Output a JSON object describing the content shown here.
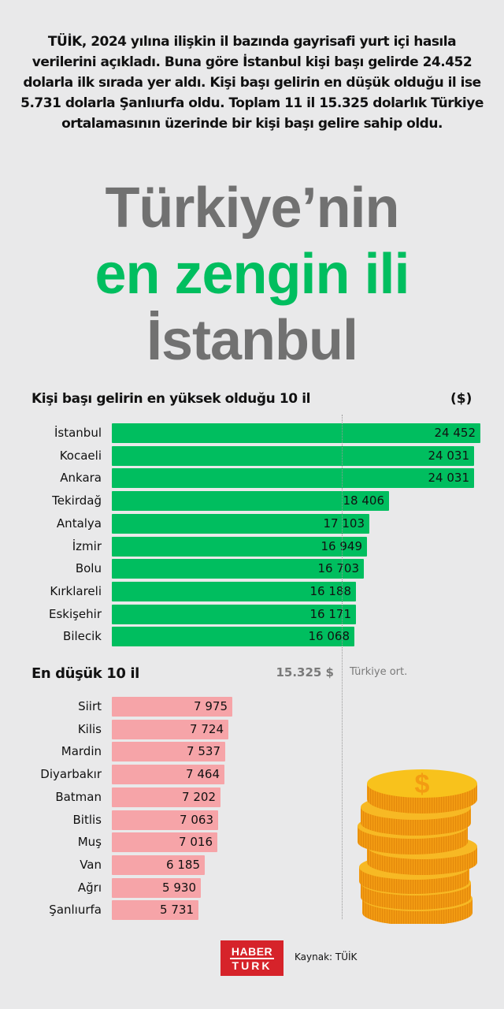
{
  "intro": "TÜİK, 2024 yılına ilişkin il bazında gayrisafi yurt içi hasıla verilerini açıkladı. Buna göre İstanbul kişi başı gelirde 24.452 dolarla ilk sırada yer aldı. Kişi başı gelirin en düşük olduğu il ise 5.731 dolarla Şanlıurfa oldu. Toplam 11 il 15.325 dolarlık Türkiye ortalamasının üzerinde bir kişi başı gelire sahip oldu.",
  "headline": {
    "line1": "Türkiye’nin",
    "line2": "en zengin ili",
    "line3": "İstanbul"
  },
  "top_section": {
    "title": "Kişi başı gelirin en yüksek olduğu 10 il",
    "unit": "($)"
  },
  "low_section": {
    "title": "En düşük 10 il"
  },
  "average": {
    "value": "15.325 $",
    "label": "Türkiye ort."
  },
  "footer": {
    "logo_line1": "HABER",
    "logo_line2": "TURK",
    "source": "Kaynak: TÜİK"
  },
  "colors": {
    "top_bar": "#00be5f",
    "low_bar": "#f6a4a8",
    "headline_gray": "#717171",
    "headline_green": "#00be5f",
    "background": "#e9e9ea"
  },
  "icons": {
    "coins": "coin-stack-dollar-icon"
  },
  "chart_data": [
    {
      "type": "bar",
      "orientation": "horizontal",
      "title": "Kişi başı gelirin en yüksek olduğu 10 il",
      "ylabel": "($)",
      "categories": [
        "İstanbul",
        "Kocaeli",
        "Ankara",
        "Tekirdağ",
        "Antalya",
        "İzmir",
        "Bolu",
        "Kırklareli",
        "Eskişehir",
        "Bilecik"
      ],
      "values": [
        24452,
        24031,
        24031,
        18406,
        17103,
        16949,
        16703,
        16188,
        16171,
        16068
      ],
      "labels": [
        "24 452",
        "24 031",
        "24 031",
        "18 406",
        "17 103",
        "16 949",
        "16 703",
        "16 188",
        "16 171",
        "16 068"
      ],
      "color": "#00be5f",
      "reference_line": {
        "value": 15325,
        "label": "Türkiye ort.",
        "display": "15.325 $"
      }
    },
    {
      "type": "bar",
      "orientation": "horizontal",
      "title": "En düşük 10 il",
      "categories": [
        "Siirt",
        "Kilis",
        "Mardin",
        "Diyarbakır",
        "Batman",
        "Bitlis",
        "Muş",
        "Van",
        "Ağrı",
        "Şanlıurfa"
      ],
      "values": [
        7975,
        7724,
        7537,
        7464,
        7202,
        7063,
        7016,
        6185,
        5930,
        5731
      ],
      "labels": [
        "7 975",
        "7 724",
        "7 537",
        "7 464",
        "7 202",
        "7 063",
        "7 016",
        "6 185",
        "5 930",
        "5 731"
      ],
      "color": "#f6a4a8",
      "reference_line": {
        "value": 15325,
        "label": "Türkiye ort.",
        "display": "15.325 $"
      }
    }
  ]
}
